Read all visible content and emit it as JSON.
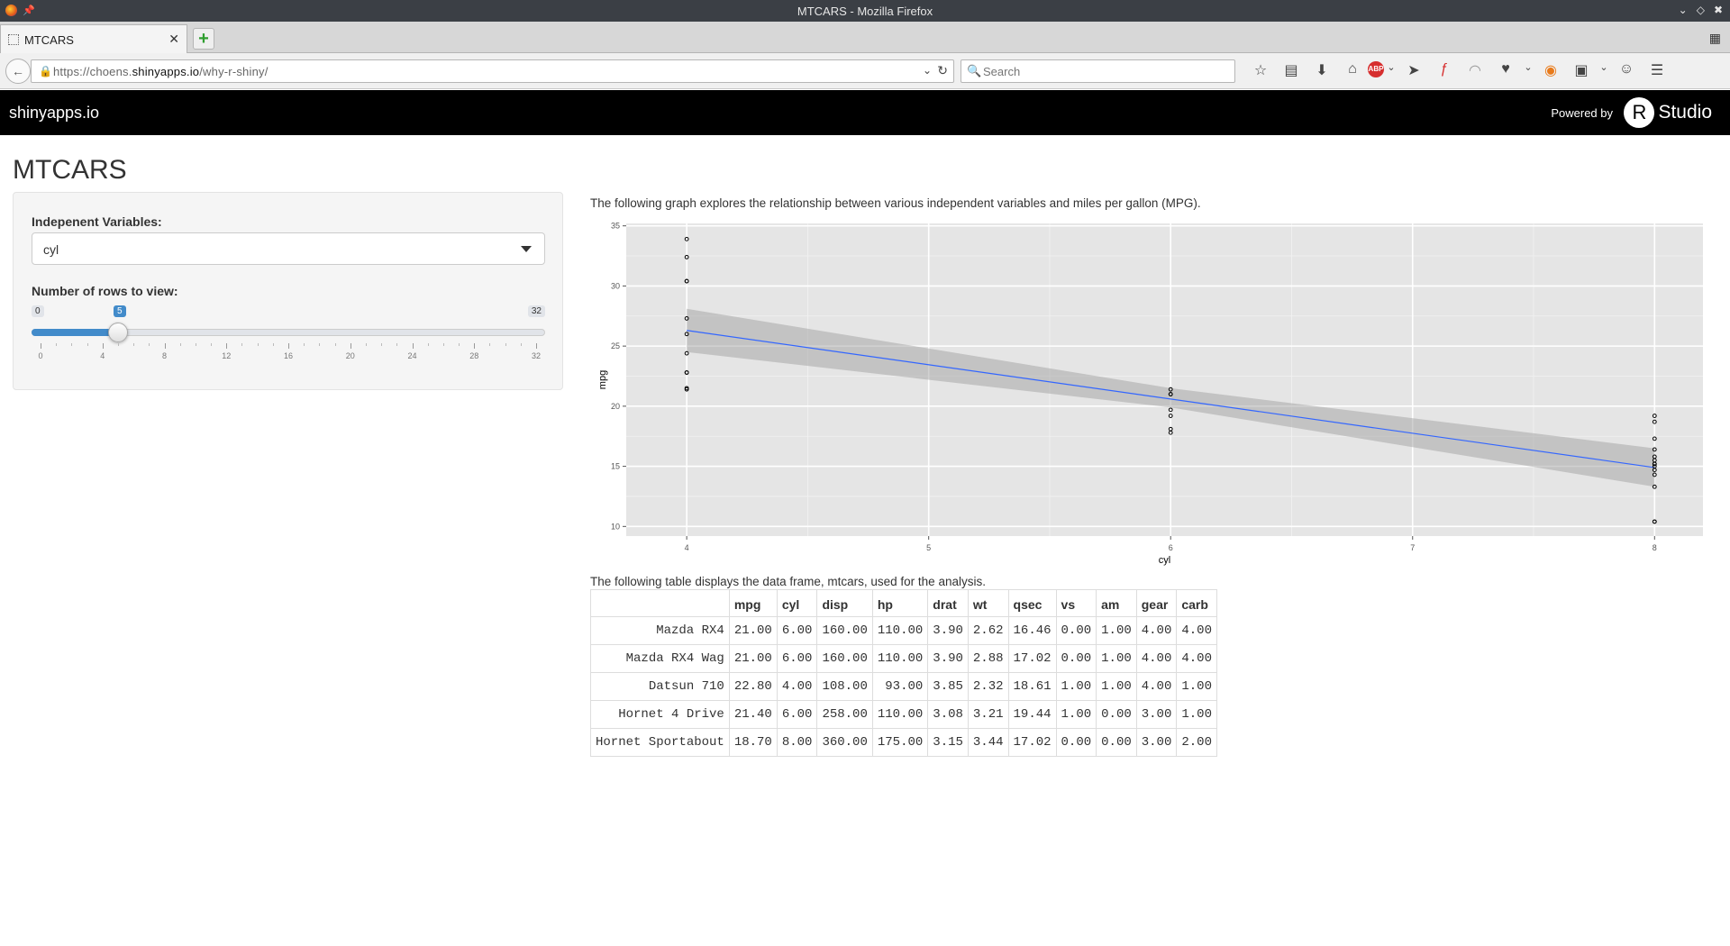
{
  "window": {
    "title": "MTCARS - Mozilla Firefox"
  },
  "tabs": [
    {
      "label": "MTCARS"
    }
  ],
  "nav": {
    "url_prefix": "https://choens.",
    "url_host": "shinyapps.io",
    "url_path": "/why-r-shiny/",
    "search_placeholder": "Search"
  },
  "icons": {
    "lock": "lock-icon",
    "back": "back-arrow-icon",
    "reload": "reload-icon",
    "bookmark": "star-icon",
    "reading_list": "clipboard-icon",
    "downloads": "download-icon",
    "home": "home-icon",
    "adblock": "abp-icon",
    "send": "paper-plane-icon",
    "flash": "flash-icon",
    "rss": "rss-icon",
    "pocket": "pocket-icon",
    "menu": "hamburger-icon"
  },
  "appbar": {
    "brand": "shinyapps.io",
    "powered_by": "Powered by",
    "rstudio_r": "R",
    "rstudio_text": "Studio"
  },
  "page": {
    "title": "MTCARS",
    "sidebar": {
      "variable_label": "Indepenent Variables:",
      "variable_value": "cyl",
      "rows_label": "Number of rows to view:",
      "slider": {
        "min": 0,
        "max": 32,
        "value": 5,
        "ticks": [
          "0",
          "4",
          "8",
          "12",
          "16",
          "20",
          "24",
          "28",
          "32"
        ]
      }
    },
    "graph_intro": "The following graph explores the relationship between various independent variables and miles per gallon (MPG).",
    "table_intro": "The following table displays the data frame, mtcars, used for the analysis."
  },
  "chart_data": {
    "type": "scatter",
    "xlabel": "cyl",
    "ylabel": "mpg",
    "xlim": [
      3.75,
      8.2
    ],
    "ylim": [
      9.2,
      35.2
    ],
    "x_ticks": [
      4,
      5,
      6,
      7,
      8
    ],
    "y_ticks": [
      10,
      15,
      20,
      25,
      30,
      35
    ],
    "points": [
      {
        "x": 4,
        "y": 33.9
      },
      {
        "x": 4,
        "y": 32.4
      },
      {
        "x": 4,
        "y": 30.4
      },
      {
        "x": 4,
        "y": 30.4
      },
      {
        "x": 4,
        "y": 27.3
      },
      {
        "x": 4,
        "y": 26.0
      },
      {
        "x": 4,
        "y": 24.4
      },
      {
        "x": 4,
        "y": 22.8
      },
      {
        "x": 4,
        "y": 22.8
      },
      {
        "x": 4,
        "y": 21.5
      },
      {
        "x": 4,
        "y": 21.4
      },
      {
        "x": 6,
        "y": 21.4
      },
      {
        "x": 6,
        "y": 21.0
      },
      {
        "x": 6,
        "y": 21.0
      },
      {
        "x": 6,
        "y": 19.7
      },
      {
        "x": 6,
        "y": 19.2
      },
      {
        "x": 6,
        "y": 18.1
      },
      {
        "x": 6,
        "y": 17.8
      },
      {
        "x": 8,
        "y": 19.2
      },
      {
        "x": 8,
        "y": 18.7
      },
      {
        "x": 8,
        "y": 17.3
      },
      {
        "x": 8,
        "y": 16.4
      },
      {
        "x": 8,
        "y": 15.8
      },
      {
        "x": 8,
        "y": 15.5
      },
      {
        "x": 8,
        "y": 15.2
      },
      {
        "x": 8,
        "y": 15.2
      },
      {
        "x": 8,
        "y": 15.0
      },
      {
        "x": 8,
        "y": 14.7
      },
      {
        "x": 8,
        "y": 14.3
      },
      {
        "x": 8,
        "y": 13.3
      },
      {
        "x": 8,
        "y": 10.4
      },
      {
        "x": 8,
        "y": 10.4
      }
    ],
    "fit_line": {
      "x": [
        4,
        8
      ],
      "y": [
        26.3,
        14.9
      ]
    },
    "confidence_band": {
      "x": [
        4,
        6,
        8
      ],
      "lower": [
        24.5,
        19.9,
        13.3
      ],
      "upper": [
        28.1,
        21.5,
        16.5
      ]
    },
    "colors": {
      "panel": "#e5e5e5",
      "grid": "#ffffff",
      "line": "#3366ff",
      "band": "#999999"
    }
  },
  "table": {
    "headers": [
      "",
      "mpg",
      "cyl",
      "disp",
      "hp",
      "drat",
      "wt",
      "qsec",
      "vs",
      "am",
      "gear",
      "carb"
    ],
    "rows": [
      [
        "Mazda RX4",
        "21.00",
        "6.00",
        "160.00",
        "110.00",
        "3.90",
        "2.62",
        "16.46",
        "0.00",
        "1.00",
        "4.00",
        "4.00"
      ],
      [
        "Mazda RX4 Wag",
        "21.00",
        "6.00",
        "160.00",
        "110.00",
        "3.90",
        "2.88",
        "17.02",
        "0.00",
        "1.00",
        "4.00",
        "4.00"
      ],
      [
        "Datsun 710",
        "22.80",
        "4.00",
        "108.00",
        "93.00",
        "3.85",
        "2.32",
        "18.61",
        "1.00",
        "1.00",
        "4.00",
        "1.00"
      ],
      [
        "Hornet 4 Drive",
        "21.40",
        "6.00",
        "258.00",
        "110.00",
        "3.08",
        "3.21",
        "19.44",
        "1.00",
        "0.00",
        "3.00",
        "1.00"
      ],
      [
        "Hornet Sportabout",
        "18.70",
        "8.00",
        "360.00",
        "175.00",
        "3.15",
        "3.44",
        "17.02",
        "0.00",
        "0.00",
        "3.00",
        "2.00"
      ]
    ]
  }
}
